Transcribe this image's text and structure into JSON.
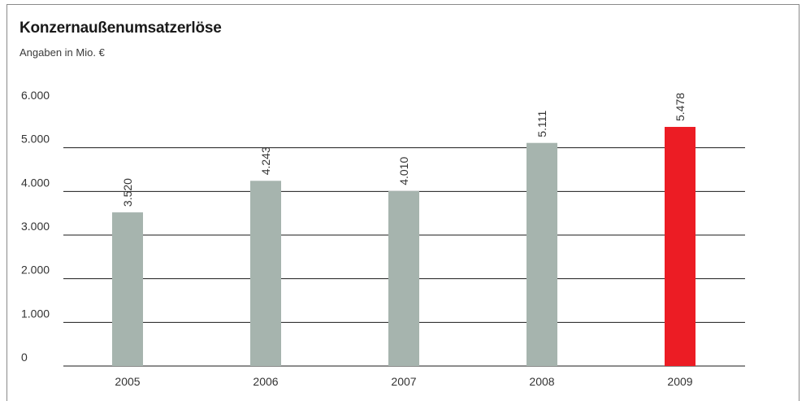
{
  "chart_data": {
    "type": "bar",
    "title": "Konzernaußenumsatzerlöse",
    "subtitle": "Angaben in Mio. €",
    "categories": [
      "2005",
      "2006",
      "2007",
      "2008",
      "2009"
    ],
    "values": [
      3520,
      4243,
      4010,
      5111,
      5478
    ],
    "value_labels": [
      "3.520",
      "4.243",
      "4.010",
      "5.111",
      "5.478"
    ],
    "yticks": [
      0,
      1000,
      2000,
      3000,
      4000,
      5000,
      6000
    ],
    "ytick_labels": [
      "0",
      "1.000",
      "2.000",
      "3.000",
      "4.000",
      "5.000",
      "6.000"
    ],
    "ylim": [
      0,
      6000
    ],
    "xlabel": "",
    "ylabel": "",
    "grid": true,
    "colors": {
      "bar": "#a6b4ae",
      "highlight_bar": "#ec1c24",
      "grid": "#1a1a1a",
      "frame": "#8a8a8a"
    },
    "highlight_index": 4
  }
}
